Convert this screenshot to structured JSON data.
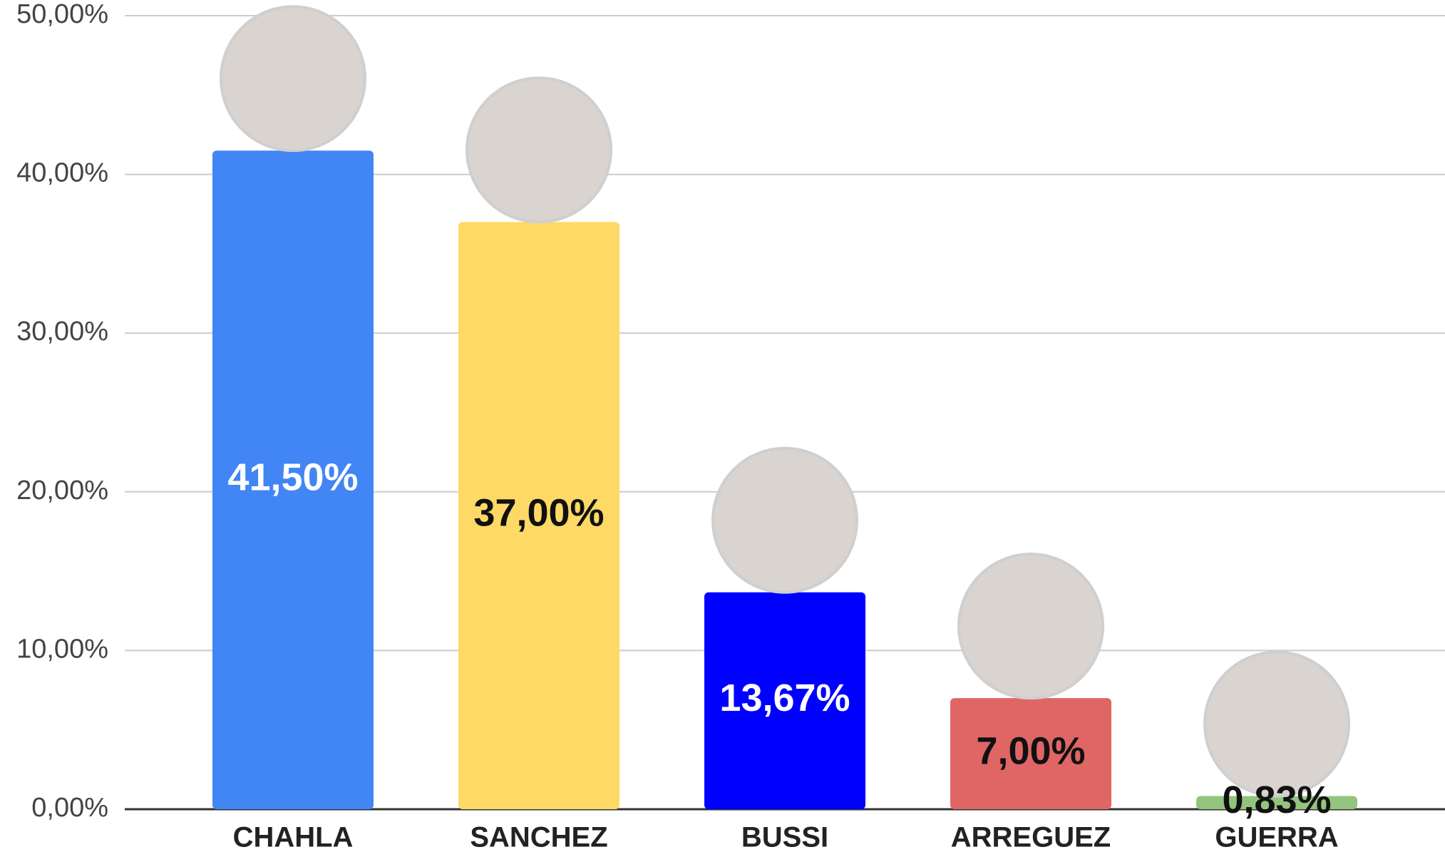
{
  "chart_data": {
    "type": "bar",
    "categories": [
      "CHAHLA",
      "SANCHEZ",
      "BUSSI",
      "ARREGUEZ",
      "GUERRA"
    ],
    "values": [
      41.5,
      37,
      13.67,
      7,
      0.83
    ],
    "value_labels": [
      "41,50%",
      "37,00%",
      "13,67%",
      "7,00%",
      "0,83%"
    ],
    "colors": [
      "#4285f4",
      "#ffd966",
      "#0000ff",
      "#e06666",
      "#93c47d"
    ],
    "value_label_colors": [
      "#ffffff",
      "#111111",
      "#ffffff",
      "#111111",
      "#111111"
    ],
    "ylim": [
      0,
      50
    ],
    "yticks": [
      {
        "value": 0,
        "label": "0,00%"
      },
      {
        "value": 10,
        "label": "10,00%"
      },
      {
        "value": 20,
        "label": "20,00%"
      },
      {
        "value": 30,
        "label": "30,00%"
      },
      {
        "value": 40,
        "label": "40,00%"
      },
      {
        "value": 50,
        "label": "50,00%"
      }
    ],
    "grid": true
  }
}
